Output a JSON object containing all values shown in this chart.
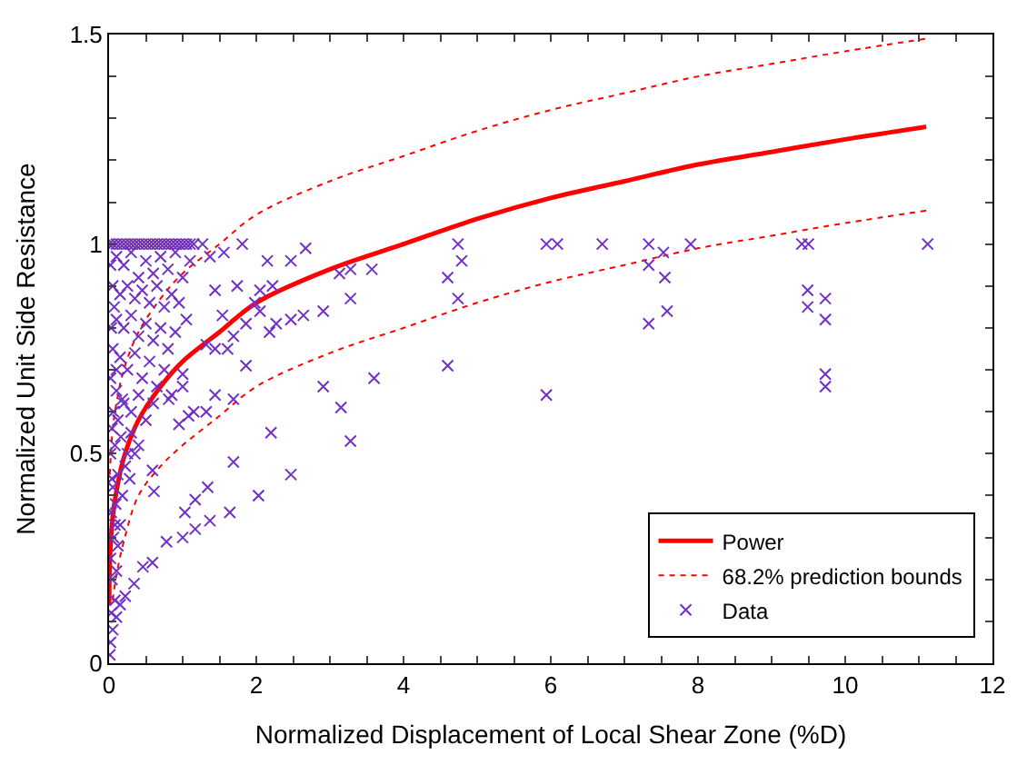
{
  "chart_data": {
    "type": "scatter",
    "xlabel": "Normalized Displacement of Local Shear Zone (%D)",
    "ylabel": "Normalized Unit Side Resistance",
    "xlim": [
      0,
      12
    ],
    "xticks": [
      0,
      {
        "value": 0.5,
        "label": null
      },
      {
        "value": 1,
        "label": null
      },
      {
        "value": 1.5,
        "label": null
      },
      2,
      {
        "value": 2.5,
        "label": null
      },
      {
        "value": 3,
        "label": null
      },
      {
        "value": 3.5,
        "label": null
      },
      4,
      {
        "value": 4.5,
        "label": null
      },
      {
        "value": 5,
        "label": null
      },
      {
        "value": 5.5,
        "label": null
      },
      6,
      {
        "value": 6.5,
        "label": null
      },
      {
        "value": 7,
        "label": null
      },
      {
        "value": 7.5,
        "label": null
      },
      8,
      {
        "value": 8.5,
        "label": null
      },
      {
        "value": 9,
        "label": null
      },
      {
        "value": 9.5,
        "label": null
      },
      10,
      {
        "value": 10.5,
        "label": null
      },
      {
        "value": 11,
        "label": null
      },
      {
        "value": 11.5,
        "label": null
      },
      12
    ],
    "ylim": [
      0,
      1.5
    ],
    "yticks": [
      0,
      {
        "value": 0.1,
        "label": null
      },
      {
        "value": 0.2,
        "label": null
      },
      {
        "value": 0.3,
        "label": null
      },
      {
        "value": 0.4,
        "label": null
      },
      0.5,
      {
        "value": 0.6,
        "label": null
      },
      {
        "value": 0.7,
        "label": null
      },
      {
        "value": 0.8,
        "label": null
      },
      {
        "value": 0.9,
        "label": null
      },
      1,
      {
        "value": 1.1,
        "label": null
      },
      {
        "value": 1.2,
        "label": null
      },
      {
        "value": 1.3,
        "label": null
      },
      {
        "value": 1.4,
        "label": null
      },
      1.5
    ],
    "legend": "bottom right",
    "series": [
      {
        "name": "Power",
        "type": "line",
        "color": "#ff0000",
        "line_style": "solid",
        "marker": "none",
        "x": [
          0.001,
          0.01,
          0.05,
          0.1,
          0.2,
          0.4,
          0.7,
          1,
          1.5,
          2,
          3,
          4,
          5,
          6,
          7,
          8,
          9,
          10,
          11.1
        ],
        "values": [
          0.14,
          0.24,
          0.35,
          0.41,
          0.49,
          0.58,
          0.66,
          0.72,
          0.79,
          0.86,
          0.94,
          1.0,
          1.06,
          1.11,
          1.15,
          1.19,
          1.22,
          1.25,
          1.28
        ]
      },
      {
        "name": "68.2% prediction bounds",
        "type": "line",
        "color": "#ff0000",
        "line_style": "dotted",
        "marker": "none",
        "x": [
          0.01,
          0.05,
          0.1,
          0.2,
          0.4,
          0.7,
          1,
          1.5,
          2,
          3,
          4,
          5,
          6,
          7,
          8,
          9,
          10,
          11.1
        ],
        "values": [
          0.45,
          0.56,
          0.62,
          0.7,
          0.79,
          0.87,
          0.93,
          1.0,
          1.07,
          1.15,
          1.21,
          1.27,
          1.32,
          1.36,
          1.4,
          1.43,
          1.46,
          1.49
        ]
      },
      {
        "type": "line",
        "color": "#ff0000",
        "line_style": "dotted",
        "marker": "none",
        "x": [
          0.05,
          0.1,
          0.2,
          0.4,
          0.7,
          1,
          1.5,
          2,
          3,
          4,
          5,
          6,
          7,
          8,
          9,
          10,
          11.1
        ],
        "values": [
          0.15,
          0.21,
          0.29,
          0.4,
          0.47,
          0.52,
          0.59,
          0.66,
          0.74,
          0.8,
          0.86,
          0.91,
          0.95,
          0.99,
          1.02,
          1.05,
          1.08
        ]
      },
      {
        "name": "Data",
        "color": "#7030c8",
        "marker": "cross",
        "x": [
          0,
          0.05,
          0.1,
          0.15,
          0.2,
          0.25,
          0.3,
          0.35,
          0.4,
          0.45,
          0.5,
          0.55,
          0.6,
          0.65,
          0.7,
          0.75,
          0.8,
          0.85,
          0.9,
          0.95,
          1.0,
          1.05,
          1.1,
          1.15,
          0.1,
          0.3,
          0.5,
          0.7,
          0.9,
          1.1,
          0.2,
          0.6,
          0.8,
          0.4,
          1.0,
          0.05,
          0.15,
          0.25,
          0.35,
          0.45,
          0.55,
          0.65,
          0.75,
          0.85,
          0.95,
          0.1,
          0.2,
          0.3,
          0.4,
          0.5,
          0.6,
          0.7,
          0.8,
          0.9,
          1.05,
          0.05,
          0.15,
          0.25,
          0.35,
          0.45,
          0.55,
          0.65,
          0.75,
          0.1,
          0.2,
          0.3,
          0.4,
          0.5,
          0.6,
          0.85,
          1.15,
          0.95,
          0.02,
          0.05,
          0.03,
          0.08,
          0.04,
          0.1,
          0.02,
          0.12,
          0.06,
          0.15,
          0.03,
          0.09,
          0.18,
          0.05,
          0.12,
          0.22,
          0.02,
          0.08,
          0.16,
          0.25,
          0.04,
          0.12,
          0.3,
          0.06,
          0.18,
          0.02,
          0.1,
          0.03,
          0.07,
          0.02,
          0.01,
          0.04,
          0.08,
          0.35,
          0.4,
          0.28,
          1.86,
          2.2,
          3.28,
          3.15,
          2.91,
          3.6,
          2.47,
          1.69,
          2.03,
          1.64,
          1.34,
          1.17,
          1.03,
          1.37,
          1.17,
          1.0,
          0.78,
          0.59,
          0.46,
          0.34,
          0.22,
          0.15,
          0.1,
          0.61,
          0.59,
          1.08,
          1.32,
          1.69,
          1.44,
          1.0,
          0.81,
          1.0,
          1.44,
          1.61,
          1.32,
          1.69,
          1.86,
          1.54,
          1.44,
          1.74,
          1.98,
          2.05,
          2.18,
          2.22,
          2.47,
          2.64,
          2.91,
          3.13,
          3.28,
          3.28,
          2.67,
          2.47,
          2.15,
          1.81,
          1.56,
          1.37,
          1.27,
          3.57,
          2.05,
          2.27,
          4.74,
          5.94,
          6.09,
          6.7,
          7.33,
          7.9,
          9.41,
          9.5,
          11.12,
          7.53,
          7.33,
          4.79,
          4.6,
          4.74,
          7.55,
          9.49,
          9.73,
          9.49,
          9.73,
          7.33,
          7.58,
          4.6,
          5.94,
          9.73,
          9.73
        ],
        "values": [
          1,
          1,
          1,
          1,
          1,
          1,
          1,
          1,
          1,
          1,
          1,
          1,
          1,
          1,
          1,
          1,
          1,
          1,
          1,
          1,
          1,
          1,
          1,
          1,
          0.97,
          0.98,
          0.96,
          0.97,
          0.98,
          0.96,
          0.95,
          0.93,
          0.94,
          0.92,
          0.92,
          0.9,
          0.88,
          0.9,
          0.87,
          0.89,
          0.86,
          0.9,
          0.85,
          0.88,
          0.86,
          0.82,
          0.8,
          0.83,
          0.78,
          0.81,
          0.77,
          0.8,
          0.75,
          0.79,
          0.82,
          0.75,
          0.73,
          0.7,
          0.74,
          0.68,
          0.72,
          0.66,
          0.7,
          0.65,
          0.62,
          0.6,
          0.64,
          0.58,
          0.62,
          0.64,
          0.6,
          0.57,
          0.05,
          0.08,
          0.12,
          0.15,
          0.2,
          0.22,
          0.25,
          0.28,
          0.3,
          0.33,
          0.36,
          0.38,
          0.4,
          0.42,
          0.45,
          0.47,
          0.5,
          0.52,
          0.54,
          0.5,
          0.56,
          0.58,
          0.55,
          0.6,
          0.63,
          0.68,
          0.7,
          0.8,
          0.85,
          0.95,
          0.02,
          0.44,
          0.33,
          0.5,
          0.52,
          0.44,
          0.71,
          0.55,
          0.53,
          0.61,
          0.66,
          0.68,
          0.45,
          0.48,
          0.4,
          0.36,
          0.42,
          0.39,
          0.36,
          0.34,
          0.32,
          0.3,
          0.29,
          0.24,
          0.23,
          0.19,
          0.16,
          0.14,
          0.11,
          0.41,
          0.46,
          0.59,
          0.6,
          0.63,
          0.64,
          0.66,
          0.63,
          0.69,
          0.75,
          0.75,
          0.76,
          0.78,
          0.81,
          0.83,
          0.89,
          0.9,
          0.86,
          0.84,
          0.79,
          0.9,
          0.82,
          0.83,
          0.84,
          0.93,
          0.94,
          0.87,
          0.99,
          0.96,
          0.96,
          1.0,
          0.98,
          0.97,
          1.0,
          0.94,
          0.89,
          0.81,
          1,
          1,
          1,
          1,
          1,
          1,
          1,
          1,
          1,
          0.98,
          0.95,
          0.96,
          0.92,
          0.87,
          0.92,
          0.89,
          0.87,
          0.85,
          0.82,
          0.81,
          0.84,
          0.71,
          0.64,
          0.69,
          0.66
        ]
      }
    ]
  }
}
